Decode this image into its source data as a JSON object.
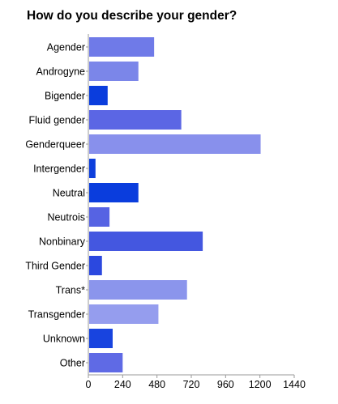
{
  "chart_data": {
    "type": "bar",
    "orientation": "horizontal",
    "title": "How do you describe your gender?",
    "xlabel": "",
    "ylabel": "",
    "categories": [
      "Agender",
      "Androgyne",
      "Bigender",
      "Fluid gender",
      "Genderqueer",
      "Intergender",
      "Neutral",
      "Neutrois",
      "Nonbinary",
      "Third Gender",
      "Trans*",
      "Transgender",
      "Unknown",
      "Other"
    ],
    "values": [
      460,
      350,
      135,
      650,
      1205,
      50,
      350,
      148,
      800,
      95,
      690,
      490,
      170,
      240
    ],
    "colors": [
      "#6f7ae8",
      "#7b86e9",
      "#0a3ddd",
      "#5b66e4",
      "#8890ec",
      "#0d3fdc",
      "#0a3ddd",
      "#5663e3",
      "#4457e0",
      "#2b48df",
      "#8b95ec",
      "#959dee",
      "#1844df",
      "#5f6ae5"
    ],
    "xlim": [
      0,
      1440
    ],
    "xticks": [
      0,
      240,
      480,
      720,
      960,
      1200,
      1440
    ],
    "grid": false,
    "legend": "none"
  }
}
